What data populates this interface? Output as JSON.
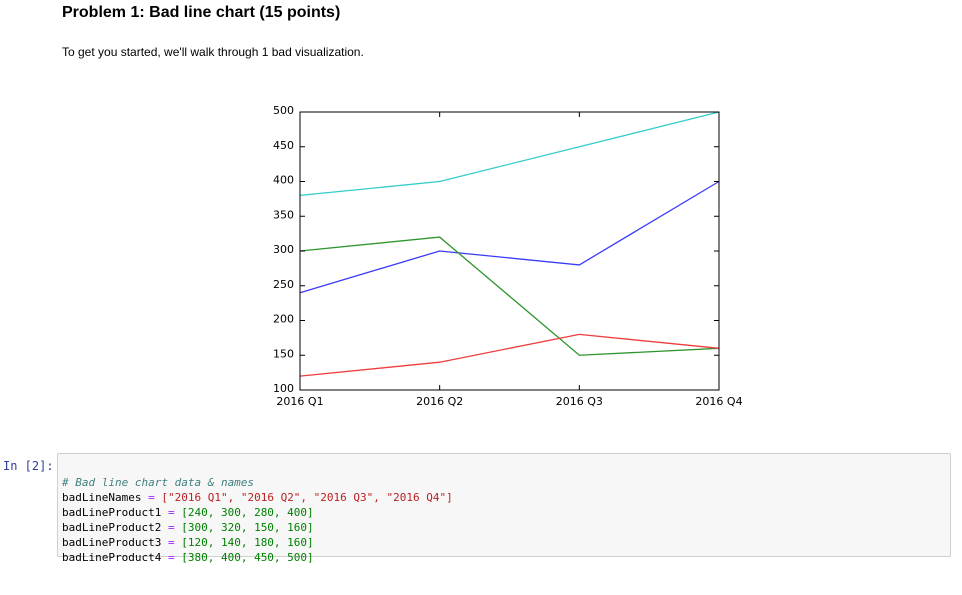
{
  "header": {
    "title": "Problem 1: Bad line chart (15 points)",
    "intro": "To get you started, we'll walk through 1 bad visualization."
  },
  "chart_data": {
    "type": "line",
    "categories": [
      "2016 Q1",
      "2016 Q2",
      "2016 Q3",
      "2016 Q4"
    ],
    "series": [
      {
        "color": "#3b3bf5",
        "values": [
          240,
          300,
          280,
          400
        ]
      },
      {
        "color": "#2e962e",
        "values": [
          300,
          320,
          150,
          160
        ]
      },
      {
        "color": "#f03c3c",
        "values": [
          120,
          140,
          180,
          160
        ]
      },
      {
        "color": "#33cccc",
        "values": [
          380,
          400,
          450,
          500
        ]
      }
    ],
    "ylim": [
      100,
      500
    ],
    "yticks": [
      100,
      150,
      200,
      250,
      300,
      350,
      400,
      450,
      500
    ]
  },
  "code_cell": {
    "prompt": "In [2]:",
    "lines": [
      [
        "# Bad line chart data & names"
      ],
      [
        "badLineNames",
        " = ",
        "[\"2016 Q1\", \"2016 Q2\", \"2016 Q3\", \"2016 Q4\"]"
      ],
      [
        "badLineProduct1",
        " = ",
        "[240, 300, 280, 400]"
      ],
      [
        "badLineProduct2",
        " = ",
        "[300, 320, 150, 160]"
      ],
      [
        "badLineProduct3",
        " = ",
        "[120, 140, 180, 160]"
      ],
      [
        "badLineProduct4",
        " = ",
        "[380, 400, 450, 500]"
      ]
    ]
  }
}
